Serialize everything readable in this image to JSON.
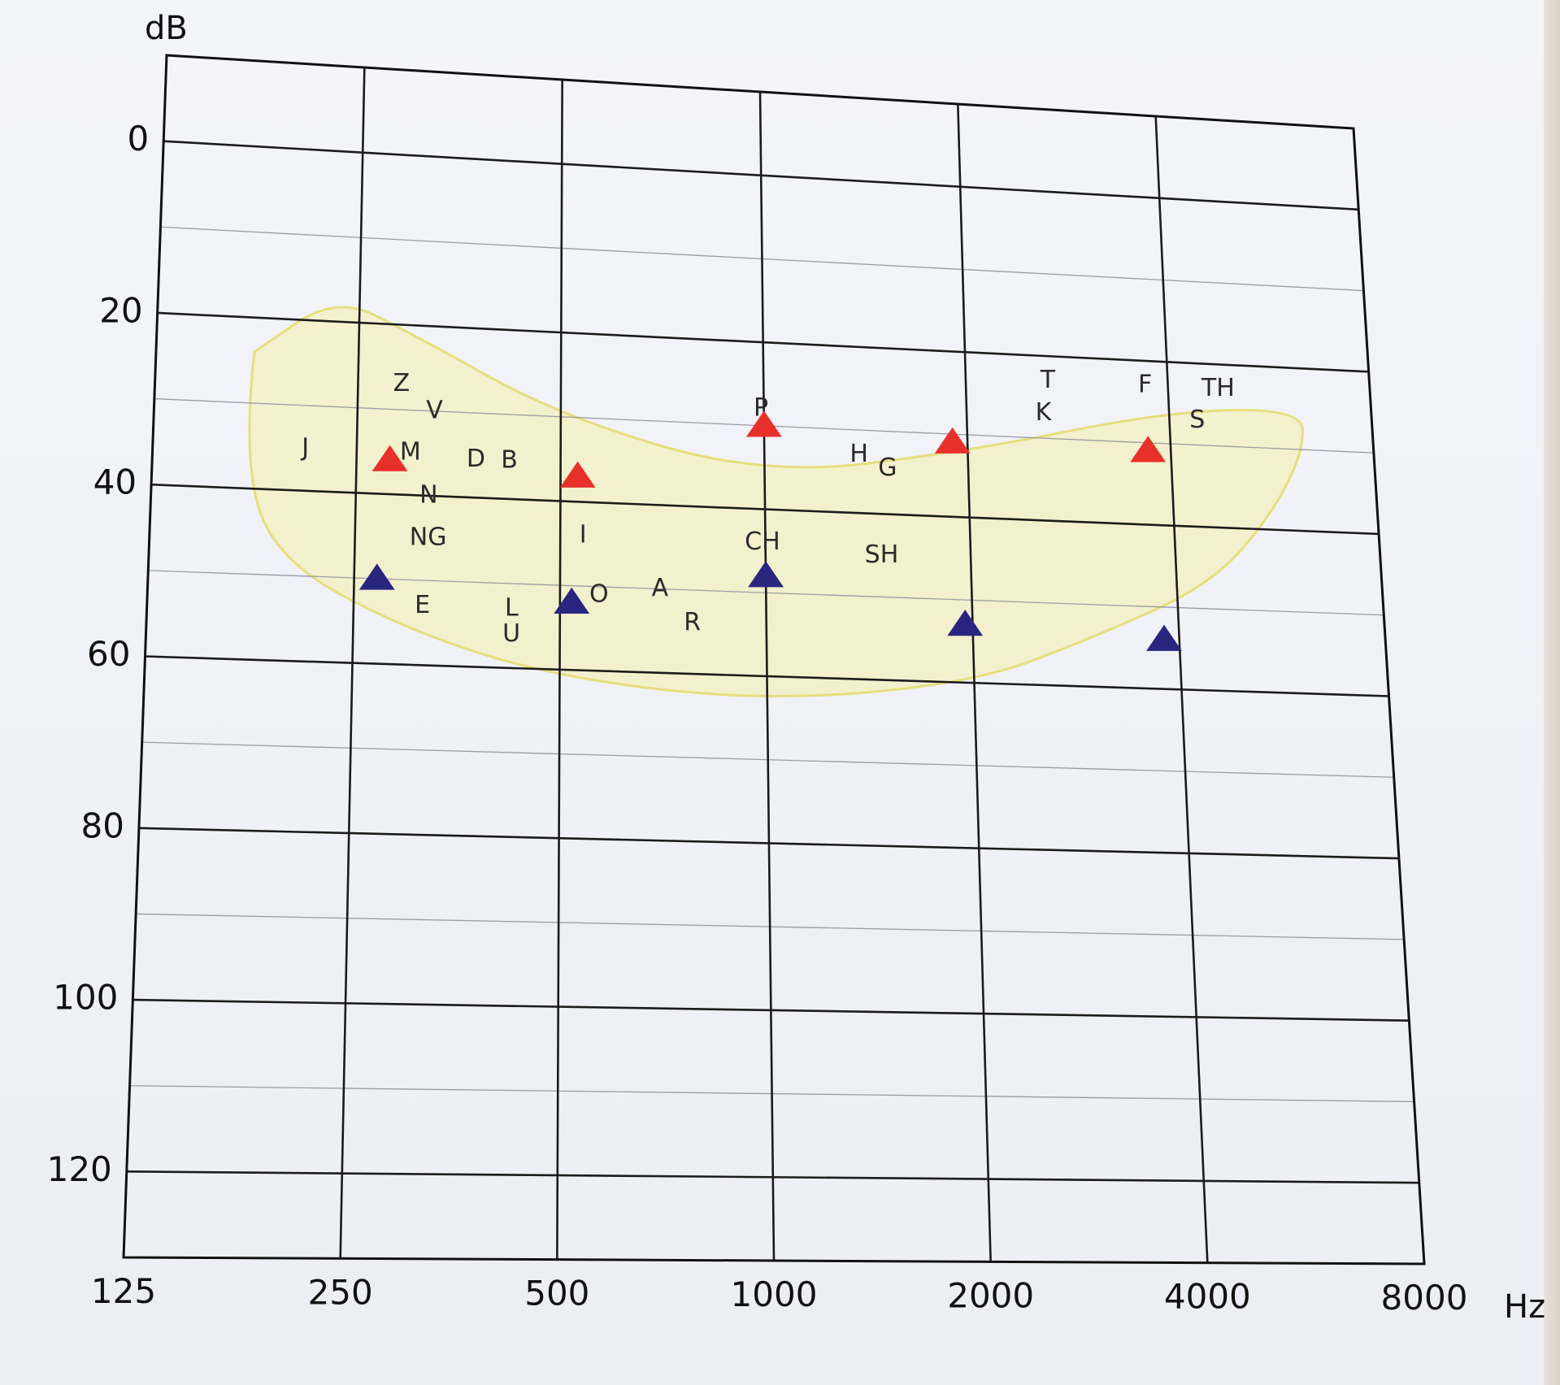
{
  "chart_data": {
    "type": "scatter",
    "title": "",
    "xlabel": "Hz",
    "ylabel": "dB",
    "x_scale": "log2",
    "xlim": [
      125,
      8000
    ],
    "ylim": [
      130,
      -10
    ],
    "y_inverted": true,
    "x_ticks": [
      125,
      250,
      500,
      1000,
      2000,
      4000,
      8000
    ],
    "x_tick_labels": [
      "125",
      "250",
      "500",
      "1000",
      "2000",
      "4000",
      "8000"
    ],
    "y_ticks": [
      0,
      20,
      40,
      60,
      80,
      100,
      120
    ],
    "y_tick_labels": [
      "0",
      "20",
      "40",
      "60",
      "80",
      "100",
      "120"
    ],
    "minor_y_ticks": [
      10,
      30,
      50,
      70,
      90,
      110
    ],
    "grid": true,
    "legend": "none",
    "series": [
      {
        "marker": "triangle",
        "color": "#e8302a",
        "points": [
          [
            280,
            36
          ],
          [
            530,
            37
          ],
          [
            1000,
            30
          ],
          [
            1900,
            31
          ],
          [
            3700,
            31
          ]
        ]
      },
      {
        "marker": "triangle",
        "color": "#2a2680",
        "points": [
          [
            270,
            50
          ],
          [
            520,
            52
          ],
          [
            1000,
            48
          ],
          [
            1950,
            53
          ],
          [
            3800,
            54
          ]
        ]
      }
    ],
    "annotations": [
      {
        "text": "Z",
        "x": 290,
        "y": 27
      },
      {
        "text": "V",
        "x": 325,
        "y": 30
      },
      {
        "text": "J",
        "x": 210,
        "y": 35
      },
      {
        "text": "M",
        "x": 300,
        "y": 35
      },
      {
        "text": "D",
        "x": 375,
        "y": 35.5
      },
      {
        "text": "B",
        "x": 420,
        "y": 35.5
      },
      {
        "text": "N",
        "x": 320,
        "y": 40
      },
      {
        "text": "NG",
        "x": 320,
        "y": 45
      },
      {
        "text": "E",
        "x": 315,
        "y": 53
      },
      {
        "text": "L",
        "x": 425,
        "y": 53
      },
      {
        "text": "U",
        "x": 425,
        "y": 56
      },
      {
        "text": "I",
        "x": 540,
        "y": 44
      },
      {
        "text": "O",
        "x": 570,
        "y": 51
      },
      {
        "text": "A",
        "x": 700,
        "y": 50
      },
      {
        "text": "R",
        "x": 780,
        "y": 54
      },
      {
        "text": "P",
        "x": 990,
        "y": 28
      },
      {
        "text": "H",
        "x": 1380,
        "y": 33
      },
      {
        "text": "G",
        "x": 1520,
        "y": 34.5
      },
      {
        "text": "CH",
        "x": 990,
        "y": 44
      },
      {
        "text": "SH",
        "x": 1480,
        "y": 45
      },
      {
        "text": "T",
        "x": 2650,
        "y": 23
      },
      {
        "text": "K",
        "x": 2600,
        "y": 27
      },
      {
        "text": "F",
        "x": 3700,
        "y": 23
      },
      {
        "text": "TH",
        "x": 4750,
        "y": 23
      },
      {
        "text": "S",
        "x": 4400,
        "y": 27
      }
    ],
    "speech_banana_fill": "#f4efab",
    "speech_banana_stroke": "#e6df7e"
  }
}
